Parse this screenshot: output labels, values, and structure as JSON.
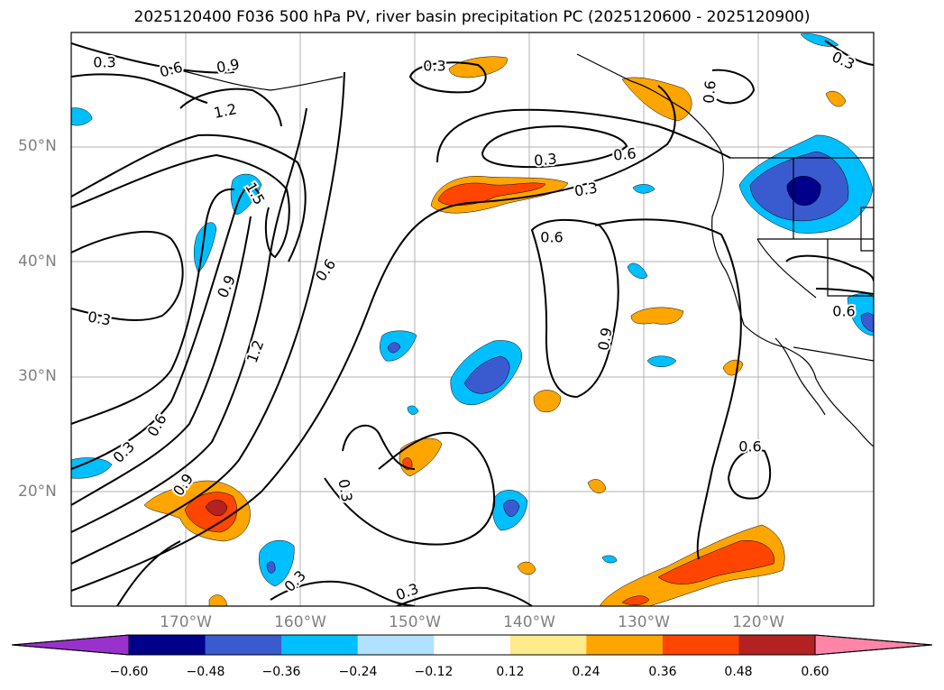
{
  "title": "2025120400 F036 500 hPa PV, river basin precipitation PC (2025120600 - 2025120900)",
  "map": {
    "lat_labels": [
      "50°N",
      "40°N",
      "30°N",
      "20°N"
    ],
    "lon_labels": [
      "170°W",
      "160°W",
      "150°W",
      "140°W",
      "130°W",
      "120°W"
    ],
    "contour_labels": [
      "0.3",
      "0.6",
      "0.9",
      "1.2",
      "0.3",
      "0.9",
      "0.6",
      "0.3",
      "1.5",
      "0.9",
      "0.6",
      "1.2",
      "0.3",
      "0.3",
      "0.6",
      "0.3",
      "0.6",
      "0.3",
      "0.6",
      "0.9",
      "0.3",
      "0.3",
      "0.3",
      "0.6",
      "0.6"
    ],
    "line_color": "#000000",
    "grid_color": "#b0b0b0"
  },
  "colorbar": {
    "ticks": [
      "−0.60",
      "−0.48",
      "−0.36",
      "−0.24",
      "−0.12",
      "0.12",
      "0.24",
      "0.36",
      "0.48",
      "0.60"
    ],
    "colors": [
      "#9932cc",
      "#00008b",
      "#3a5bd0",
      "#00bfff",
      "#b0e2ff",
      "#ffffff",
      "#ffeb8c",
      "#ffa500",
      "#ff4500",
      "#b22222",
      "#ff85a8"
    ]
  }
}
